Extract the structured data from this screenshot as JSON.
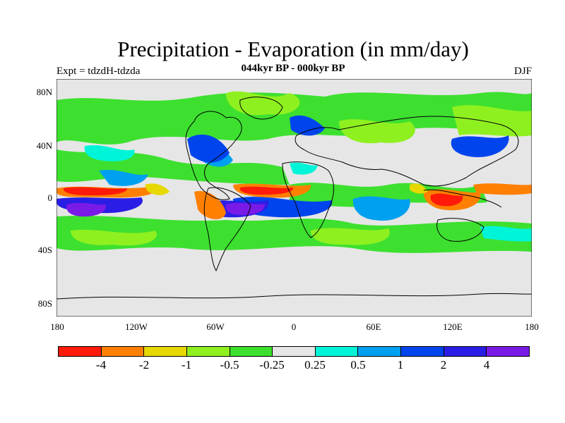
{
  "title": "Precipitation - Evaporation (in mm/day)",
  "subtitle": "044kyr BP - 000kyr BP",
  "left_label": "Expt = tdzdH-tdzda",
  "right_label": "DJF",
  "y_axis_labels": [
    "80N",
    "40N",
    "0",
    "40S",
    "80S"
  ],
  "x_axis_labels": [
    "180",
    "120W",
    "60W",
    "0",
    "60E",
    "120E",
    "180"
  ],
  "colorbar": {
    "colors": [
      "#ff1a0a",
      "#ff8000",
      "#e6d800",
      "#8ff020",
      "#3de02f",
      "#e6e6e6",
      "#00f5d8",
      "#00a0f0",
      "#0044ee",
      "#2a1ee6",
      "#7a1ae6"
    ],
    "labels": [
      "-4",
      "-2",
      "-1",
      "-0.5",
      "-0.25",
      "0.25",
      "0.5",
      "1",
      "2",
      "4"
    ]
  },
  "chart_data": {
    "type": "heatmap",
    "title": "Precipitation - Evaporation (in mm/day)",
    "subtitle": "044kyr BP - 000kyr BP",
    "season": "DJF",
    "experiment": "Expt = tdzdH-tdzda",
    "x_ticks": [
      "180",
      "120W",
      "60W",
      "0",
      "60E",
      "120E",
      "180"
    ],
    "y_ticks": [
      "80N",
      "40N",
      "0",
      "40S",
      "80S"
    ],
    "levels": [
      -4,
      -2,
      -1,
      -0.5,
      -0.25,
      0.25,
      0.5,
      1,
      2,
      4
    ],
    "xlim": [
      -180,
      180
    ],
    "ylim": [
      -90,
      90
    ]
  }
}
